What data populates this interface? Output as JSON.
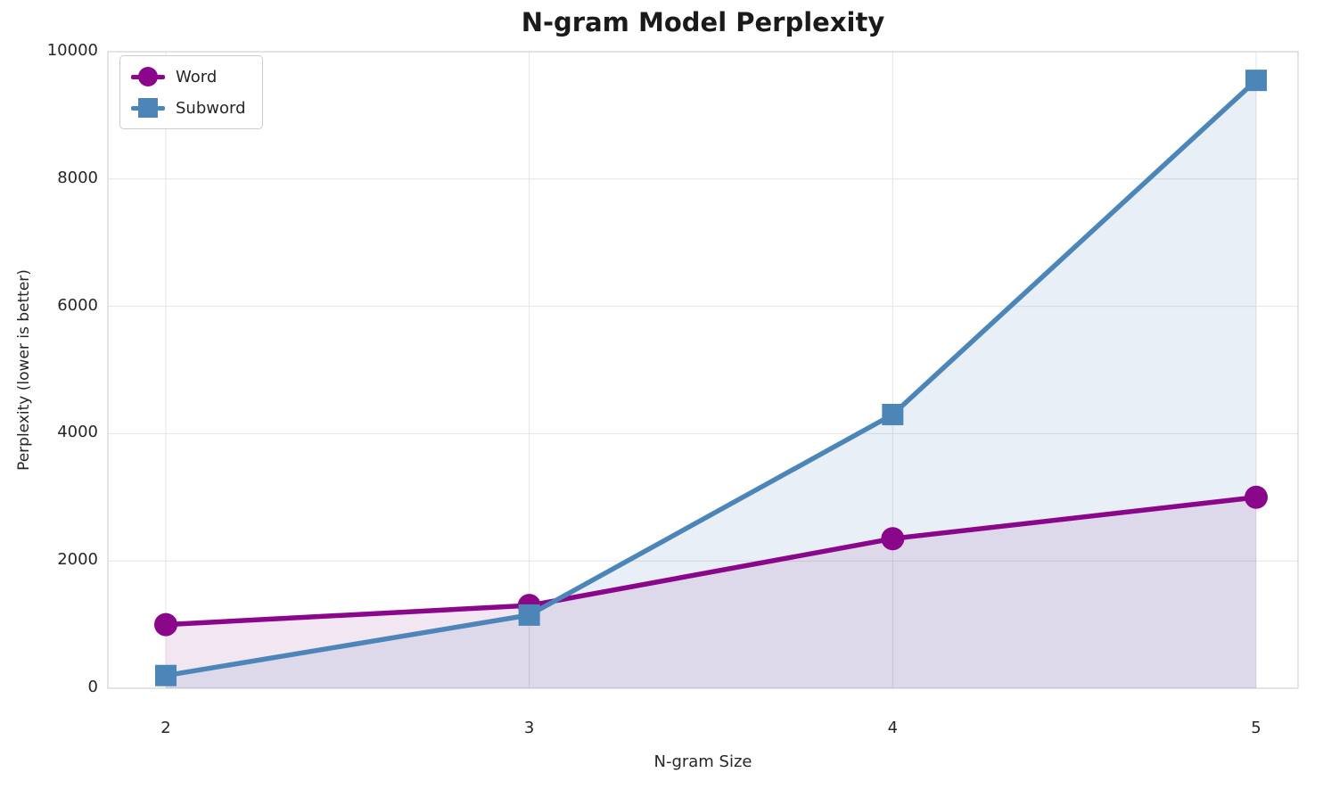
{
  "chart_data": {
    "type": "line",
    "title": "N-gram Model Perplexity",
    "xlabel": "N-gram Size",
    "ylabel": "Perplexity (lower is better)",
    "x": [
      2,
      3,
      4,
      5
    ],
    "xticks": [
      2,
      3,
      4,
      5
    ],
    "yticks": [
      0,
      2000,
      4000,
      6000,
      8000,
      10000
    ],
    "ylim": [
      0,
      10000
    ],
    "grid": true,
    "legend_position": "upper-left",
    "series": [
      {
        "name": "Word",
        "color": "#8a068a",
        "marker": "circle",
        "fill_alpha": 0.1,
        "values": [
          1000,
          1300,
          2350,
          3000
        ]
      },
      {
        "name": "Subword",
        "color": "#4c86b8",
        "marker": "square",
        "fill_alpha": 0.13,
        "values": [
          200,
          1150,
          4300,
          9550
        ]
      }
    ]
  }
}
